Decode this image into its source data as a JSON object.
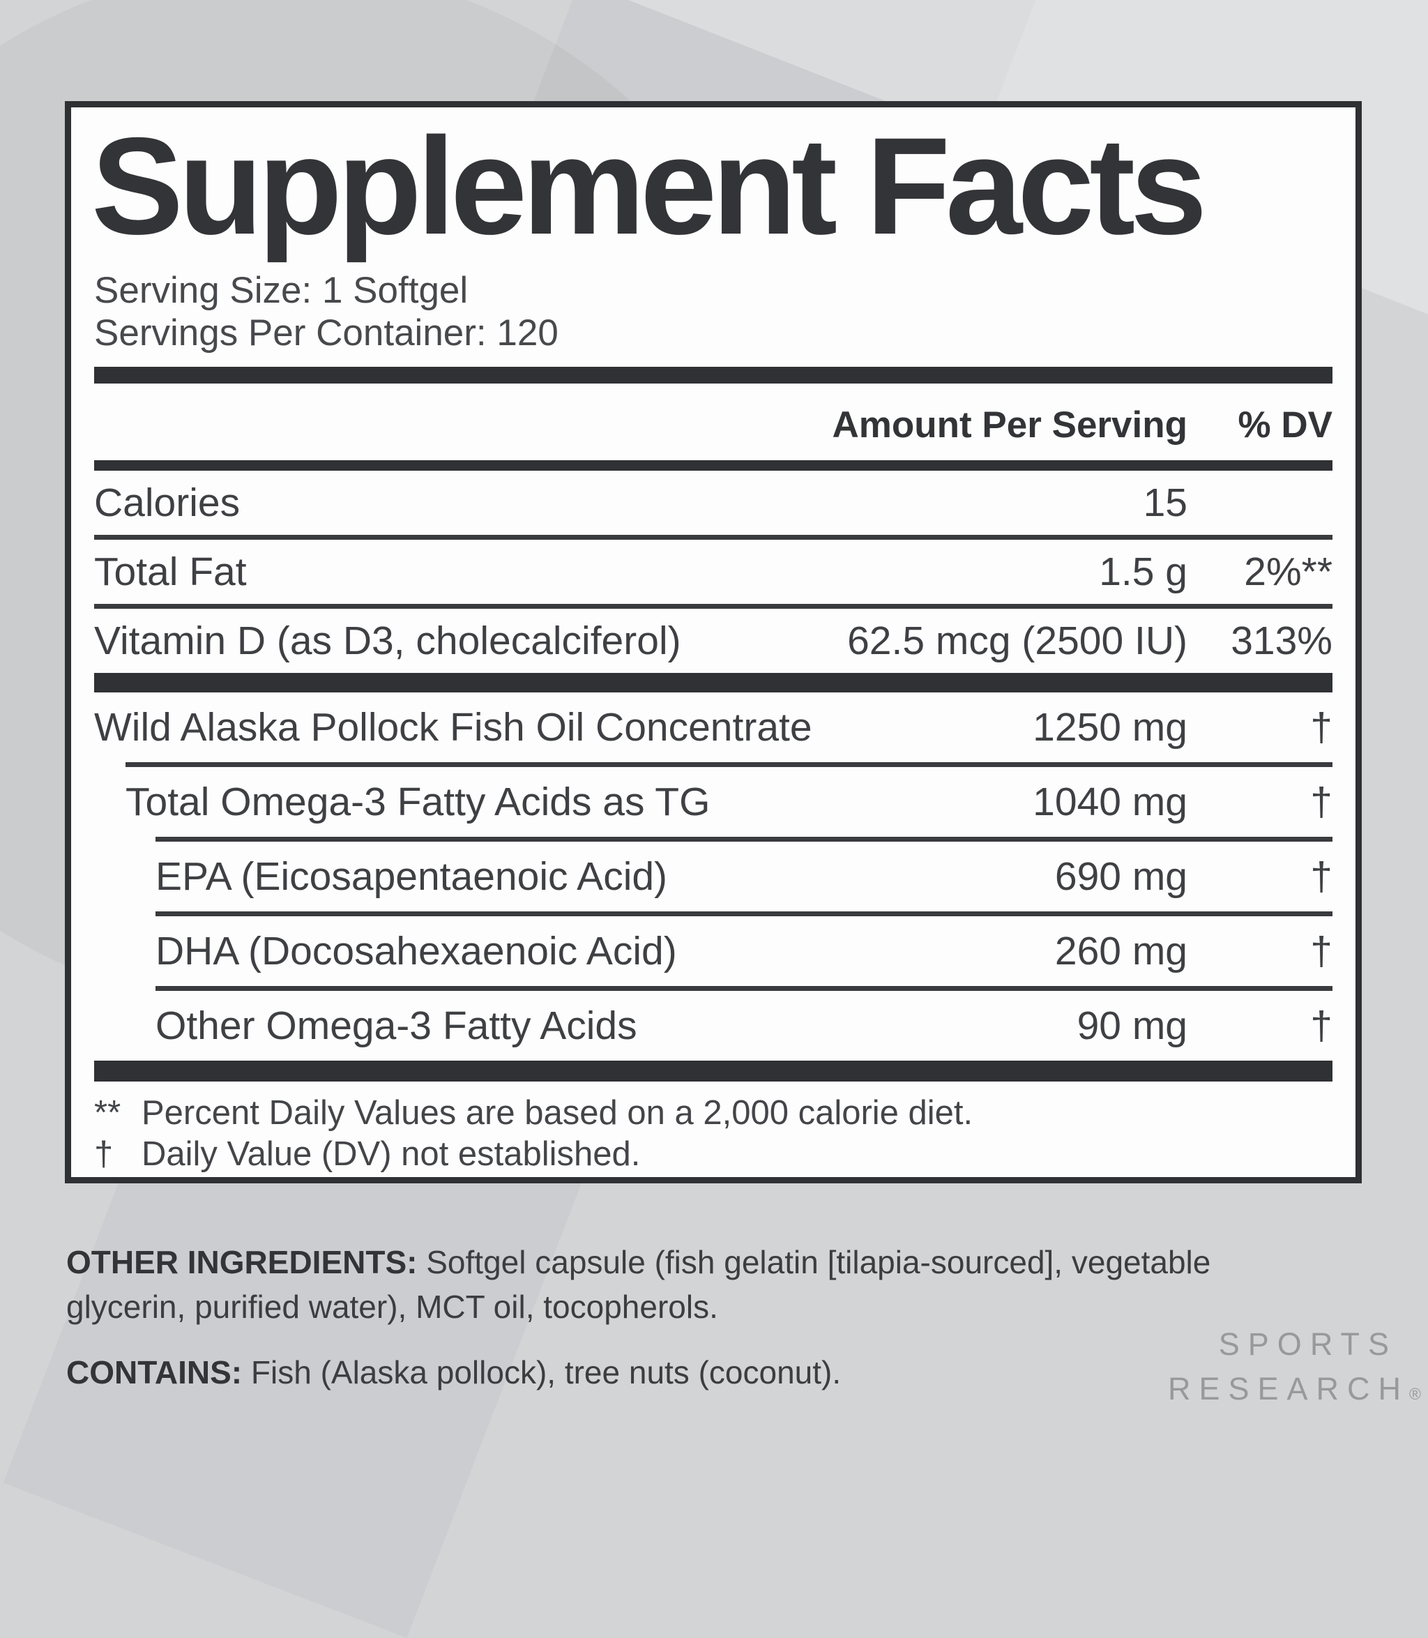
{
  "colors": {
    "background": "#d3d4d6",
    "panel_background": "#fdfdfd",
    "rule_dark": "#303134",
    "text_dark": "#333437",
    "text_light": "#48494c",
    "brand_gray": "#98999c"
  },
  "label": {
    "title": "Supplement Facts",
    "serving_size": "Serving Size: 1 Softgel",
    "servings_per_container": "Servings Per Container: 120",
    "columns": {
      "amount": "Amount Per Serving",
      "dv": "% DV"
    },
    "rows": [
      {
        "name": "Calories",
        "amount": "15",
        "dv": ""
      },
      {
        "name": "Total Fat",
        "amount": "1.5 g",
        "dv": "2%**"
      },
      {
        "name": "Vitamin D (as D3, cholecalciferol)",
        "amount": "62.5 mcg (2500 IU)",
        "dv": "313%"
      },
      {
        "name": "Wild Alaska Pollock Fish Oil Concentrate",
        "amount": "1250 mg",
        "dv": "†"
      },
      {
        "name": "Total Omega-3 Fatty Acids as TG",
        "amount": "1040 mg",
        "dv": "†"
      },
      {
        "name": "EPA (Eicosapentaenoic Acid)",
        "amount": "690 mg",
        "dv": "†"
      },
      {
        "name": "DHA (Docosahexaenoic Acid)",
        "amount": "260 mg",
        "dv": "†"
      },
      {
        "name": "Other Omega-3 Fatty Acids",
        "amount": "90 mg",
        "dv": "†"
      }
    ],
    "footnotes": [
      {
        "symbol": "**",
        "text": "Percent Daily Values are based on a 2,000 calorie diet."
      },
      {
        "symbol": "†",
        "text": "Daily Value (DV) not established."
      }
    ]
  },
  "below": {
    "other_ingredients_label": "OTHER INGREDIENTS:",
    "other_ingredients_text": " Softgel capsule (fish gelatin [tilapia-sourced], vegetable glycerin, purified water), MCT oil, tocopherols.",
    "contains_label": "CONTAINS:",
    "contains_text": " Fish (Alaska pollock), tree nuts (coconut).",
    "brand_line1": "SPORTS",
    "brand_line2": "RESEARCH",
    "brand_reg": "®"
  }
}
